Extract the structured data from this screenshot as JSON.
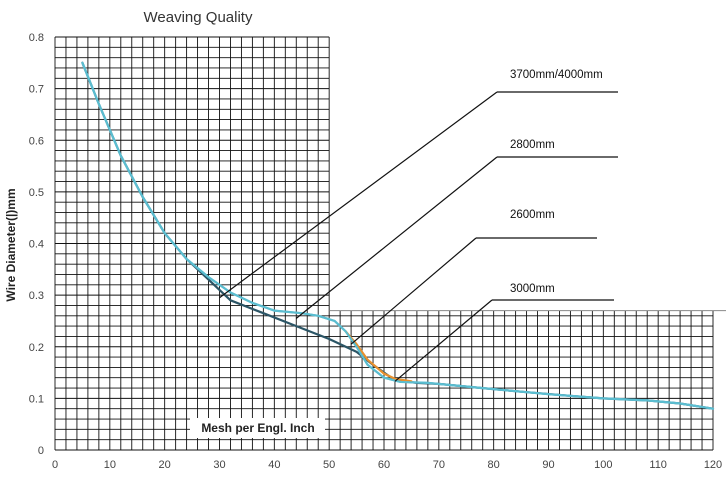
{
  "chart_data": {
    "type": "line",
    "title": "Weaving Quality",
    "xlabel": "Mesh per Engl. Inch",
    "ylabel": "Wire Diameter(|)mm",
    "xlim": [
      0,
      120
    ],
    "ylim": [
      0,
      0.8
    ],
    "x_ticks": [
      "0",
      "10",
      "20",
      "30",
      "40",
      "50",
      "60",
      "70",
      "80",
      "90",
      "100",
      "110",
      "120"
    ],
    "y_ticks": [
      "0",
      "0.1",
      "0.2",
      "0.3",
      "0.4",
      "0.5",
      "0.6",
      "0.7",
      "0.8"
    ],
    "grid": true,
    "series": [
      {
        "color": "#2b5566",
        "points": [
          [
            5,
            0.75
          ],
          [
            8,
            0.67
          ],
          [
            12,
            0.57
          ],
          [
            16,
            0.49
          ],
          [
            20,
            0.42
          ],
          [
            24,
            0.37
          ],
          [
            28,
            0.33
          ],
          [
            32,
            0.29
          ],
          [
            38,
            0.265
          ],
          [
            44,
            0.24
          ],
          [
            50,
            0.215
          ],
          [
            55,
            0.19
          ],
          [
            58,
            0.165
          ],
          [
            62,
            0.135
          ],
          [
            66,
            0.13
          ],
          [
            70,
            0.128
          ],
          [
            78,
            0.12
          ],
          [
            86,
            0.112
          ],
          [
            94,
            0.105
          ],
          [
            100,
            0.1
          ],
          [
            108,
            0.096
          ],
          [
            114,
            0.09
          ],
          [
            120,
            0.08
          ]
        ]
      },
      {
        "color": "#5bbdd0",
        "points": [
          [
            5,
            0.75
          ],
          [
            8,
            0.67
          ],
          [
            12,
            0.57
          ],
          [
            16,
            0.49
          ],
          [
            20,
            0.42
          ],
          [
            24,
            0.37
          ],
          [
            28,
            0.335
          ],
          [
            32,
            0.305
          ],
          [
            36,
            0.285
          ],
          [
            40,
            0.27
          ],
          [
            45,
            0.265
          ],
          [
            48,
            0.26
          ],
          [
            51,
            0.25
          ],
          [
            53,
            0.23
          ],
          [
            55,
            0.2
          ],
          [
            57,
            0.165
          ],
          [
            60,
            0.14
          ],
          [
            63,
            0.132
          ],
          [
            68,
            0.13
          ],
          [
            78,
            0.12
          ],
          [
            90,
            0.108
          ],
          [
            100,
            0.1
          ],
          [
            108,
            0.096
          ],
          [
            114,
            0.09
          ],
          [
            120,
            0.08
          ]
        ]
      },
      {
        "color": "#e8902e",
        "points": [
          [
            53,
            0.23
          ],
          [
            55,
            0.205
          ],
          [
            57,
            0.175
          ],
          [
            60,
            0.148
          ],
          [
            62,
            0.138
          ],
          [
            65,
            0.133
          ]
        ]
      }
    ],
    "callouts": [
      {
        "label": "3700mm/4000mm",
        "point": [
          30,
          0.295
        ]
      },
      {
        "label": "2800mm",
        "point": [
          44,
          0.255
        ]
      },
      {
        "label": "2600mm",
        "point": [
          54,
          0.205
        ]
      },
      {
        "label": "3000mm",
        "point": [
          62,
          0.133
        ]
      }
    ]
  }
}
